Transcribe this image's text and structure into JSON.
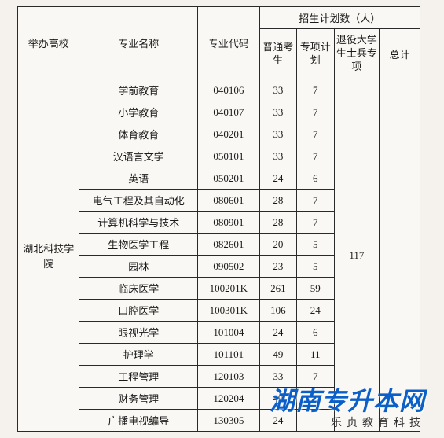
{
  "headers": {
    "school": "举办高校",
    "major": "专业名称",
    "code": "专业代码",
    "plan_group": "招生计划数（人）",
    "normal": "普通考生",
    "special": "专项计划",
    "veteran": "退役大学生士兵专项",
    "total": "总计"
  },
  "school_name": "湖北科技学院",
  "veteran_value": "117",
  "rows": [
    {
      "major": "学前教育",
      "code": "040106",
      "normal": "33",
      "special": "7"
    },
    {
      "major": "小学教育",
      "code": "040107",
      "normal": "33",
      "special": "7"
    },
    {
      "major": "体育教育",
      "code": "040201",
      "normal": "33",
      "special": "7"
    },
    {
      "major": "汉语言文学",
      "code": "050101",
      "normal": "33",
      "special": "7"
    },
    {
      "major": "英语",
      "code": "050201",
      "normal": "24",
      "special": "6"
    },
    {
      "major": "电气工程及其自动化",
      "code": "080601",
      "normal": "28",
      "special": "7"
    },
    {
      "major": "计算机科学与技术",
      "code": "080901",
      "normal": "28",
      "special": "7"
    },
    {
      "major": "生物医学工程",
      "code": "082601",
      "normal": "20",
      "special": "5"
    },
    {
      "major": "园林",
      "code": "090502",
      "normal": "23",
      "special": "5"
    },
    {
      "major": "临床医学",
      "code": "100201K",
      "normal": "261",
      "special": "59"
    },
    {
      "major": "口腔医学",
      "code": "100301K",
      "normal": "106",
      "special": "24"
    },
    {
      "major": "眼视光学",
      "code": "101004",
      "normal": "24",
      "special": "6"
    },
    {
      "major": "护理学",
      "code": "101101",
      "normal": "49",
      "special": "11"
    },
    {
      "major": "工程管理",
      "code": "120103",
      "normal": "33",
      "special": "7"
    },
    {
      "major": "财务管理",
      "code": "120204",
      "normal": "49",
      "special": ""
    },
    {
      "major": "广播电视编导",
      "code": "130305",
      "normal": "24",
      "special": ""
    }
  ],
  "watermark": {
    "main": "湖南专升本网",
    "sub": "乐贞教育科技"
  },
  "styling": {
    "background_color": "#f5f2ed",
    "table_bg": "#faf8f4",
    "border_color": "#2a2a2a",
    "text_color": "#1a1a1a",
    "font_size": 13,
    "watermark_color": "#0b5fc9",
    "watermark_fontsize": 32,
    "watermark_sub_fontsize": 14
  }
}
